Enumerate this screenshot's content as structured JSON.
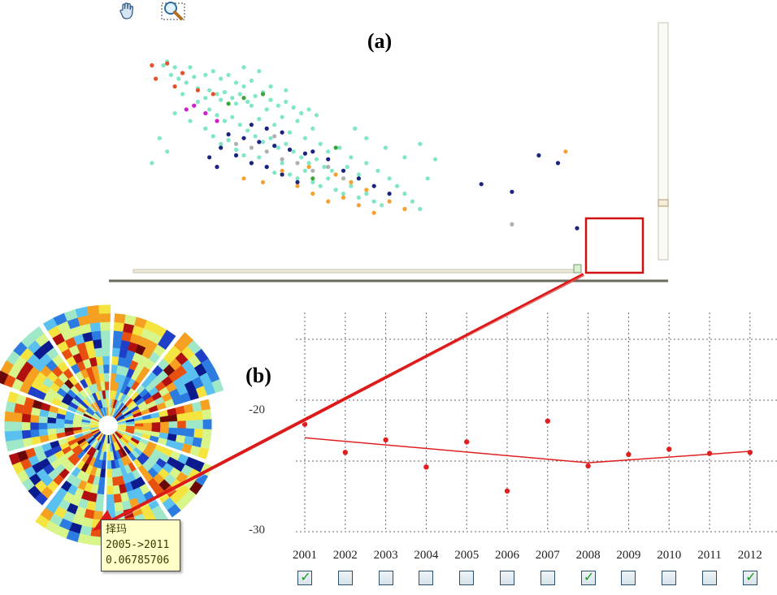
{
  "panel_labels": {
    "a": "(a)",
    "b": "(b)"
  },
  "toolbar": {
    "pan_icon": "hand-pan-icon",
    "zoom_icon": "zoom-select-icon"
  },
  "colors": {
    "teal": "#7fe6c6",
    "red": "#e8502a",
    "navy": "#1a237e",
    "orange": "#f5a033",
    "gray": "#b0b0b0",
    "green": "#3aa63a",
    "magenta": "#cc22cc",
    "line": "#e02020",
    "highlight": "#d01010"
  },
  "tooltip": {
    "name": "择玛",
    "range": "2005->2011",
    "value": "0.06785706"
  },
  "chart_data": [
    {
      "type": "scatter",
      "title": "(a)",
      "series": [
        {
          "color": "teal",
          "points": [
            [
              0.07,
              0.07
            ],
            [
              0.08,
              0.05
            ],
            [
              0.1,
              0.08
            ],
            [
              0.12,
              0.11
            ],
            [
              0.14,
              0.08
            ],
            [
              0.09,
              0.12
            ],
            [
              0.11,
              0.14
            ],
            [
              0.13,
              0.16
            ],
            [
              0.15,
              0.13
            ],
            [
              0.18,
              0.12
            ],
            [
              0.2,
              0.1
            ],
            [
              0.22,
              0.14
            ],
            [
              0.24,
              0.12
            ],
            [
              0.26,
              0.16
            ],
            [
              0.28,
              0.18
            ],
            [
              0.3,
              0.15
            ],
            [
              0.16,
              0.19
            ],
            [
              0.19,
              0.2
            ],
            [
              0.21,
              0.22
            ],
            [
              0.23,
              0.21
            ],
            [
              0.25,
              0.24
            ],
            [
              0.27,
              0.22
            ],
            [
              0.29,
              0.26
            ],
            [
              0.31,
              0.23
            ],
            [
              0.33,
              0.21
            ],
            [
              0.35,
              0.25
            ],
            [
              0.37,
              0.28
            ],
            [
              0.39,
              0.26
            ],
            [
              0.41,
              0.29
            ],
            [
              0.43,
              0.32
            ],
            [
              0.45,
              0.3
            ],
            [
              0.47,
              0.33
            ],
            [
              0.19,
              0.3
            ],
            [
              0.21,
              0.33
            ],
            [
              0.23,
              0.36
            ],
            [
              0.25,
              0.34
            ],
            [
              0.27,
              0.38
            ],
            [
              0.29,
              0.41
            ],
            [
              0.31,
              0.44
            ],
            [
              0.33,
              0.47
            ],
            [
              0.35,
              0.45
            ],
            [
              0.37,
              0.5
            ],
            [
              0.39,
              0.48
            ],
            [
              0.41,
              0.52
            ],
            [
              0.43,
              0.55
            ],
            [
              0.45,
              0.58
            ],
            [
              0.47,
              0.56
            ],
            [
              0.49,
              0.6
            ],
            [
              0.51,
              0.62
            ],
            [
              0.18,
              0.4
            ],
            [
              0.2,
              0.44
            ],
            [
              0.22,
              0.48
            ],
            [
              0.24,
              0.46
            ],
            [
              0.26,
              0.51
            ],
            [
              0.28,
              0.54
            ],
            [
              0.3,
              0.58
            ],
            [
              0.32,
              0.55
            ],
            [
              0.34,
              0.6
            ],
            [
              0.36,
              0.63
            ],
            [
              0.38,
              0.58
            ],
            [
              0.4,
              0.64
            ],
            [
              0.42,
              0.66
            ],
            [
              0.44,
              0.62
            ],
            [
              0.46,
              0.68
            ],
            [
              0.48,
              0.7
            ],
            [
              0.5,
              0.66
            ],
            [
              0.52,
              0.72
            ],
            [
              0.54,
              0.74
            ],
            [
              0.56,
              0.7
            ],
            [
              0.58,
              0.76
            ],
            [
              0.6,
              0.74
            ],
            [
              0.62,
              0.78
            ],
            [
              0.64,
              0.8
            ],
            [
              0.1,
              0.32
            ],
            [
              0.14,
              0.36
            ],
            [
              0.16,
              0.26
            ],
            [
              0.32,
              0.35
            ],
            [
              0.36,
              0.38
            ],
            [
              0.4,
              0.42
            ],
            [
              0.44,
              0.45
            ],
            [
              0.48,
              0.48
            ],
            [
              0.53,
              0.5
            ],
            [
              0.56,
              0.55
            ],
            [
              0.6,
              0.58
            ],
            [
              0.63,
              0.62
            ],
            [
              0.66,
              0.66
            ],
            [
              0.68,
              0.7
            ],
            [
              0.7,
              0.74
            ],
            [
              0.72,
              0.78
            ],
            [
              0.74,
              0.82
            ],
            [
              0.55,
              0.6
            ],
            [
              0.58,
              0.64
            ],
            [
              0.5,
              0.52
            ],
            [
              0.46,
              0.4
            ],
            [
              0.42,
              0.36
            ],
            [
              0.38,
              0.34
            ],
            [
              0.34,
              0.3
            ],
            [
              0.3,
              0.28
            ],
            [
              0.26,
              0.27
            ],
            [
              0.22,
              0.25
            ],
            [
              0.18,
              0.24
            ],
            [
              0.12,
              0.22
            ],
            [
              0.65,
              0.5
            ],
            [
              0.7,
              0.55
            ],
            [
              0.6,
              0.45
            ],
            [
              0.57,
              0.4
            ],
            [
              0.35,
              0.18
            ],
            [
              0.39,
              0.2
            ],
            [
              0.28,
              0.08
            ],
            [
              0.32,
              0.1
            ],
            [
              0.04,
              0.58
            ],
            [
              0.06,
              0.45
            ],
            [
              0.08,
              0.52
            ],
            [
              0.74,
              0.48
            ],
            [
              0.78,
              0.56
            ],
            [
              0.76,
              0.66
            ]
          ]
        },
        {
          "color": "red",
          "points": [
            [
              0.04,
              0.07
            ],
            [
              0.08,
              0.06
            ],
            [
              0.05,
              0.14
            ],
            [
              0.12,
              0.11
            ],
            [
              0.1,
              0.18
            ],
            [
              0.16,
              0.2
            ],
            [
              0.2,
              0.22
            ]
          ]
        },
        {
          "color": "navy",
          "points": [
            [
              0.24,
              0.43
            ],
            [
              0.28,
              0.45
            ],
            [
              0.32,
              0.47
            ],
            [
              0.36,
              0.49
            ],
            [
              0.4,
              0.51
            ],
            [
              0.44,
              0.53
            ],
            [
              0.22,
              0.5
            ],
            [
              0.26,
              0.54
            ],
            [
              0.3,
              0.58
            ],
            [
              0.34,
              0.6
            ],
            [
              0.38,
              0.64
            ],
            [
              0.42,
              0.68
            ],
            [
              0.46,
              0.52
            ],
            [
              0.5,
              0.56
            ],
            [
              0.3,
              0.38
            ],
            [
              0.34,
              0.4
            ],
            [
              0.38,
              0.42
            ],
            [
              0.54,
              0.62
            ],
            [
              0.58,
              0.66
            ],
            [
              0.62,
              0.7
            ],
            [
              0.66,
              0.74
            ],
            [
              0.19,
              0.55
            ],
            [
              0.21,
              0.6
            ],
            [
              0.9,
              0.69
            ],
            [
              0.98,
              0.73
            ],
            [
              1.15,
              0.92
            ],
            [
              1.05,
              0.54
            ],
            [
              1.1,
              0.58
            ]
          ]
        },
        {
          "color": "orange",
          "points": [
            [
              0.28,
              0.66
            ],
            [
              0.33,
              0.68
            ],
            [
              0.38,
              0.62
            ],
            [
              0.42,
              0.7
            ],
            [
              0.46,
              0.74
            ],
            [
              0.5,
              0.78
            ],
            [
              0.54,
              0.76
            ],
            [
              0.58,
              0.8
            ],
            [
              0.62,
              0.84
            ],
            [
              0.6,
              0.72
            ],
            [
              0.56,
              0.68
            ],
            [
              0.52,
              0.64
            ],
            [
              0.45,
              0.6
            ],
            [
              0.66,
              0.78
            ],
            [
              0.7,
              0.82
            ],
            [
              1.12,
              0.52
            ]
          ]
        },
        {
          "color": "gray",
          "points": [
            [
              0.3,
              0.5
            ],
            [
              0.34,
              0.52
            ],
            [
              0.38,
              0.56
            ],
            [
              0.42,
              0.58
            ],
            [
              0.46,
              0.62
            ],
            [
              0.5,
              0.6
            ],
            [
              0.54,
              0.66
            ],
            [
              0.36,
              0.44
            ],
            [
              0.26,
              0.48
            ],
            [
              0.98,
              0.9
            ]
          ]
        },
        {
          "color": "green",
          "points": [
            [
              0.24,
              0.27
            ],
            [
              0.28,
              0.24
            ],
            [
              0.33,
              0.22
            ],
            [
              0.52,
              0.5
            ],
            [
              0.46,
              0.66
            ]
          ]
        },
        {
          "color": "magenta",
          "points": [
            [
              0.15,
              0.28
            ],
            [
              0.18,
              0.32
            ],
            [
              0.21,
              0.36
            ],
            [
              0.13,
              0.3
            ]
          ]
        }
      ]
    },
    {
      "type": "line",
      "title": "(b)",
      "categories": [
        "2001",
        "2002",
        "2003",
        "2004",
        "2005",
        "2006",
        "2007",
        "2008",
        "2009",
        "2010",
        "2011",
        "2012"
      ],
      "yticks": [
        "-20",
        "-30"
      ],
      "ylim": [
        -31,
        -10
      ],
      "points": [
        -20.7,
        -23.4,
        -22.2,
        -24.8,
        -22.4,
        -27.1,
        -20.4,
        -24.7,
        -23.6,
        -23.1,
        -23.5,
        -23.4
      ],
      "trend": [
        -22.0,
        -22.2,
        -22.4,
        -22.6,
        -22.8,
        -23.0,
        -23.3,
        -24.4,
        -24.1,
        -23.8,
        -23.5,
        -23.3
      ],
      "checked": [
        true,
        false,
        false,
        false,
        false,
        false,
        false,
        true,
        false,
        false,
        false,
        true
      ]
    }
  ]
}
